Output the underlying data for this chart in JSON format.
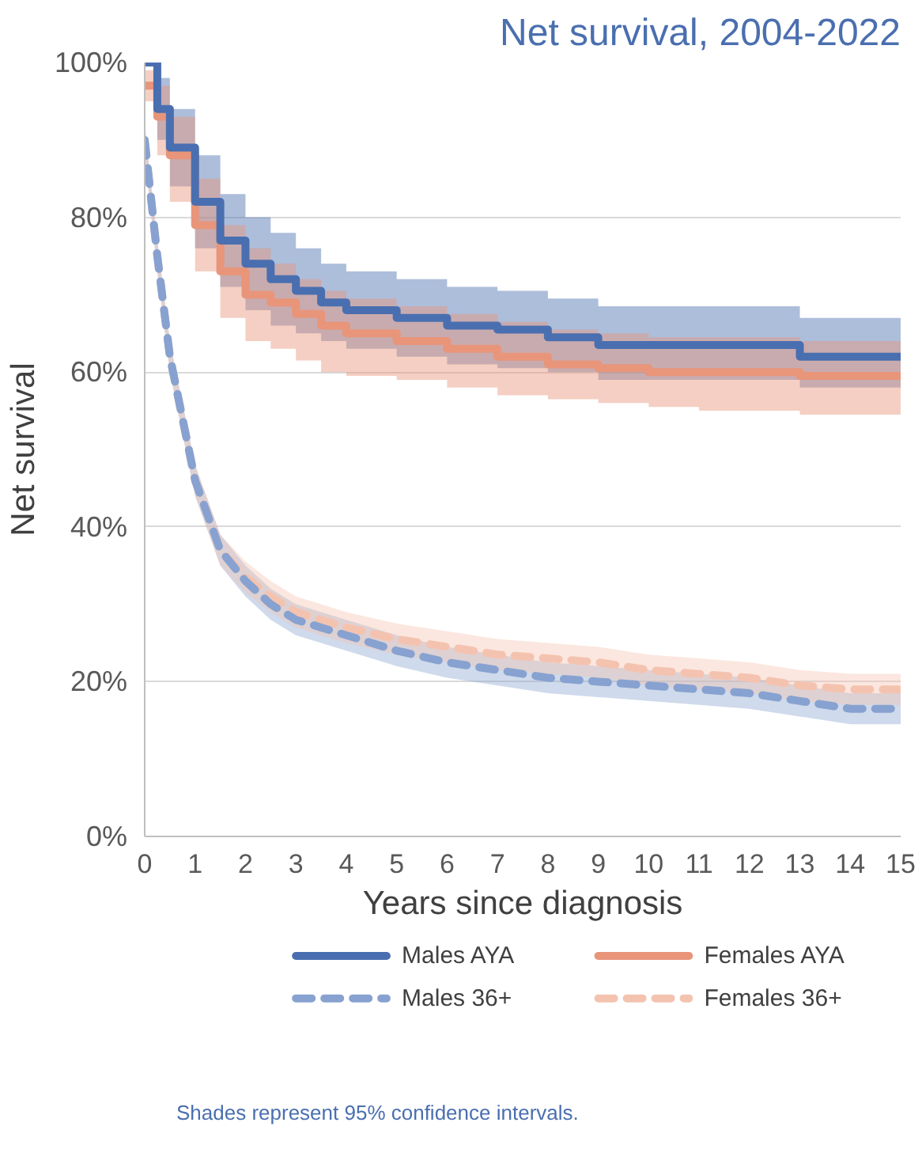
{
  "chart_data": {
    "type": "line",
    "title": "Net survival, 2004-2022",
    "xlabel": "Years since diagnosis",
    "ylabel": "Net survival",
    "x": [
      0,
      0.25,
      0.5,
      1,
      1.5,
      2,
      2.5,
      3,
      3.5,
      4,
      5,
      6,
      7,
      8,
      9,
      10,
      11,
      12,
      13,
      14,
      15
    ],
    "xlim": [
      0,
      15
    ],
    "xticks": [
      0,
      1,
      2,
      3,
      4,
      5,
      6,
      7,
      8,
      9,
      10,
      11,
      12,
      13,
      14,
      15
    ],
    "ylim": [
      0,
      100
    ],
    "yticks": [
      {
        "value": 0,
        "label": "0%"
      },
      {
        "value": 20,
        "label": "20%"
      },
      {
        "value": 40,
        "label": "40%"
      },
      {
        "value": 60,
        "label": "60%"
      },
      {
        "value": 80,
        "label": "80%"
      },
      {
        "value": 100,
        "label": "100%"
      }
    ],
    "grid": "y",
    "legend": "bottom",
    "series": [
      {
        "name": "Males AYA",
        "type": "step",
        "color": "#4a6fb0",
        "line_style": "solid",
        "values": [
          100,
          94,
          89,
          82,
          77,
          74,
          72,
          70.5,
          69,
          68,
          67,
          66,
          65.5,
          64.5,
          63.5,
          63.5,
          63.5,
          63.5,
          62,
          62,
          62
        ],
        "lower": [
          100,
          90,
          84,
          76,
          71,
          68,
          66,
          65,
          64,
          63,
          62,
          61,
          60.5,
          60,
          59,
          59,
          59,
          59,
          58,
          58,
          58
        ],
        "upper": [
          100,
          98,
          94,
          88,
          83,
          80,
          78,
          76,
          74,
          73,
          72,
          71,
          70.5,
          69.5,
          68.5,
          68.5,
          68.5,
          68.5,
          67,
          67,
          67
        ]
      },
      {
        "name": "Males 36+",
        "color": "#87a2d0",
        "line_style": "dashed",
        "values": [
          90,
          75,
          62,
          46,
          37,
          33,
          30,
          28,
          27,
          26,
          24,
          22.5,
          21.5,
          20.5,
          20,
          19.5,
          19,
          18.5,
          17.5,
          16.5,
          16.5
        ],
        "lower": [
          88,
          73,
          60,
          44,
          35,
          31,
          28,
          26,
          25,
          24,
          22,
          20.5,
          19.5,
          18.5,
          18,
          17.5,
          17,
          16.5,
          15.5,
          14.5,
          14.5
        ],
        "upper": [
          92,
          77,
          64,
          48,
          39,
          35,
          32,
          30,
          29,
          28,
          26,
          24.5,
          23.5,
          22.5,
          22,
          21.5,
          21,
          20.5,
          19.5,
          18.5,
          18.5
        ]
      },
      {
        "name": "Females AYA",
        "type": "step",
        "color": "#e8957a",
        "line_style": "solid",
        "values": [
          97,
          93,
          88,
          79,
          73,
          70,
          69,
          67.5,
          66,
          65,
          64,
          63,
          62,
          61,
          60.5,
          60,
          60,
          60,
          59.5,
          59.5,
          59.5
        ],
        "lower": [
          95,
          88,
          82,
          73,
          67,
          64,
          63,
          61.5,
          60,
          59.5,
          59,
          58,
          57,
          56.5,
          56,
          55.5,
          55,
          55,
          54.5,
          54.5,
          54.5
        ],
        "upper": [
          99,
          97,
          93,
          85,
          79,
          76,
          74,
          72,
          70.5,
          69.5,
          68.5,
          67.5,
          66.5,
          65.5,
          65,
          64.5,
          64.5,
          64.5,
          64,
          64,
          64
        ]
      },
      {
        "name": "Females 36+",
        "color": "#f4c3b0",
        "line_style": "dashed",
        "values": [
          90,
          75,
          62,
          46,
          37,
          33.5,
          31,
          29,
          28,
          27,
          25.5,
          24.5,
          23.5,
          23,
          22.5,
          21.5,
          21,
          20.5,
          19.5,
          19,
          19
        ],
        "lower": [
          88,
          73,
          60,
          44,
          35,
          31.5,
          29,
          27,
          26,
          25,
          23.5,
          22.5,
          21.5,
          21,
          20.5,
          19.5,
          19,
          18.5,
          17.5,
          17,
          17
        ],
        "upper": [
          92,
          77,
          64,
          48,
          39,
          35.5,
          33,
          31,
          30,
          29,
          27.5,
          26.5,
          25.5,
          25,
          24.5,
          23.5,
          23,
          22.5,
          21.5,
          21,
          21
        ]
      }
    ],
    "annotations": [
      "Shades represent 95% confidence intervals."
    ]
  }
}
